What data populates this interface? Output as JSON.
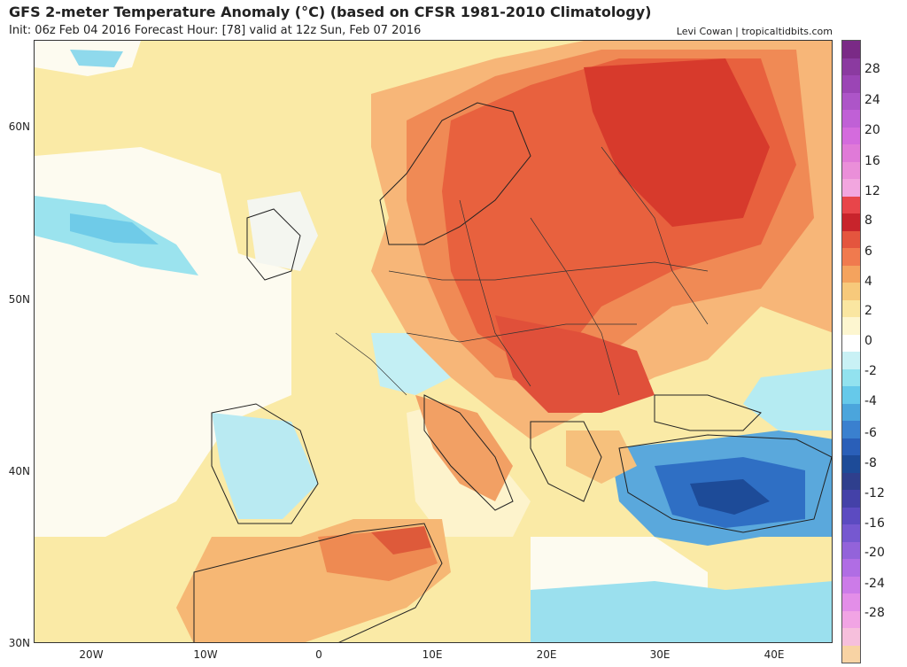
{
  "header": {
    "title": "GFS 2-meter Temperature Anomaly (°C) (based on CFSR 1981-2010 Climatology)",
    "subtitle": "Init: 06z Feb 04 2016   Forecast Hour: [78]   valid at 12z Sun, Feb 07 2016",
    "credit": "Levi Cowan | tropicaltidbits.com"
  },
  "axes": {
    "lat_labels": [
      "60N",
      "50N",
      "40N",
      "30N"
    ],
    "lon_labels": [
      "20W",
      "10W",
      "0",
      "10E",
      "20E",
      "30E",
      "40E"
    ]
  },
  "colorbar": {
    "labels": [
      "28",
      "24",
      "20",
      "16",
      "12",
      "8",
      "6",
      "4",
      "2",
      "0",
      "-2",
      "-4",
      "-6",
      "-8",
      "-12",
      "-16",
      "-20",
      "-24",
      "-28"
    ],
    "colors": [
      "#7a2a86",
      "#8b3aa0",
      "#9b45b5",
      "#ad55c8",
      "#c060d6",
      "#d46bdd",
      "#e07ad8",
      "#ea8fd9",
      "#f2a6df",
      "#e8454a",
      "#c8242c",
      "#e4553e",
      "#f07a4e",
      "#f4a35e",
      "#f7c97b",
      "#fae6a1",
      "#fdf6d0",
      "#ffffff",
      "#c9f1f5",
      "#92e2ef",
      "#66c9ea",
      "#4ba5dc",
      "#3a80cf",
      "#2a5fb8",
      "#1d4b98",
      "#2f3f8d",
      "#4441a8",
      "#5c4bc1",
      "#7658d0",
      "#9363da",
      "#b06de4",
      "#cc7be8",
      "#e38ee8",
      "#f1a4e4",
      "#f6bfdc",
      "#f8d3a4"
    ]
  }
}
